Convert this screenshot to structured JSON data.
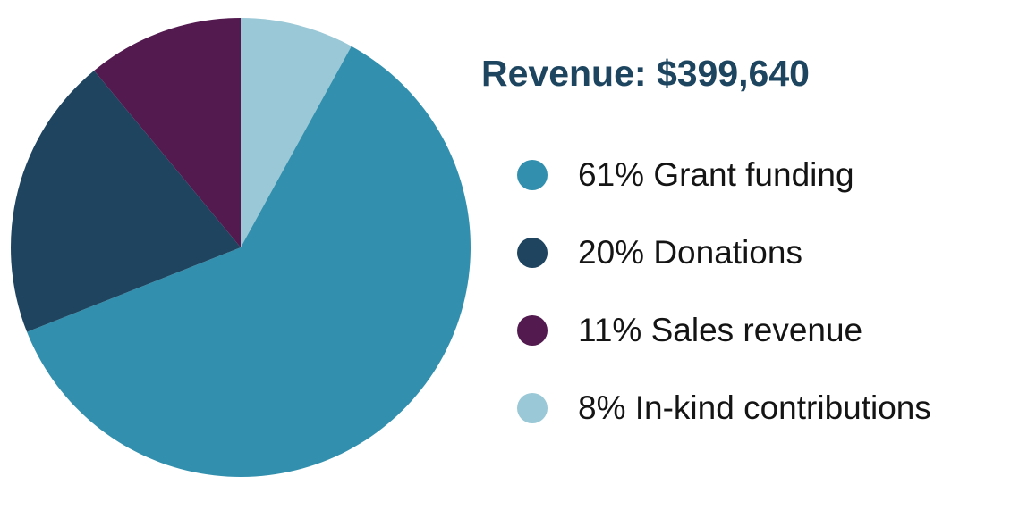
{
  "chart_data": {
    "type": "pie",
    "title": "Revenue: $399,640",
    "legend_position": "right",
    "slices": [
      {
        "label": "Grant funding",
        "legend_text": "61% Grant funding",
        "value": 61,
        "color": "#3290ae"
      },
      {
        "label": "Donations",
        "legend_text": "20% Donations",
        "value": 20,
        "color": "#1e4460"
      },
      {
        "label": "Sales revenue",
        "legend_text": "11% Sales revenue",
        "value": 11,
        "color": "#521a4f"
      },
      {
        "label": "In-kind contributions",
        "legend_text": "8% In-kind contributions",
        "value": 8,
        "color": "#9ac8d6"
      }
    ],
    "drawing_order": [
      "In-kind contributions",
      "Grant funding",
      "Donations",
      "Sales revenue"
    ]
  }
}
